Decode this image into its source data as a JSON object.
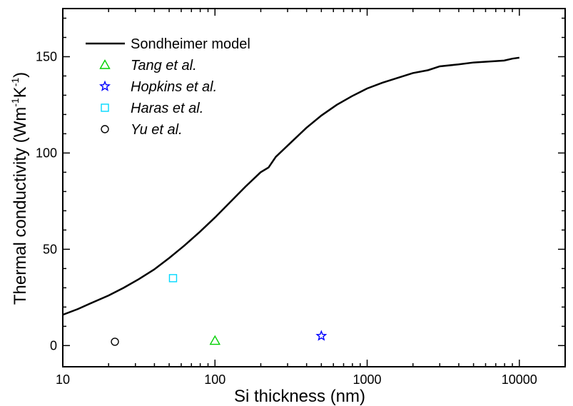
{
  "chart_data": {
    "type": "scatter",
    "xlabel": "Si thickness (nm)",
    "ylabel": "Thermal conductivity (Wm-1K-1)",
    "ylabel_parts": {
      "base": "Thermal conductivity (Wm",
      "exp1": "-1",
      "mid": "K",
      "exp2": "-1",
      "end": ")"
    },
    "x_scale": "log",
    "xlim": [
      10,
      20000
    ],
    "ylim": [
      -11,
      175
    ],
    "x_ticks": [
      10,
      100,
      1000,
      10000
    ],
    "x_tick_labels": [
      "10",
      "100",
      "1000",
      "10000"
    ],
    "y_ticks": [
      0,
      50,
      100,
      150
    ],
    "y_tick_labels": [
      "0",
      "50",
      "100",
      "150"
    ],
    "grid": false,
    "legend_position": "top-left",
    "series": [
      {
        "name": "Sondheimer model",
        "kind": "line",
        "color": "#000000",
        "x": [
          10,
          12.6,
          15.8,
          20,
          25.1,
          31.6,
          39.8,
          50.1,
          63.1,
          79.4,
          100,
          125.9,
          158.5,
          199.5,
          225,
          251,
          316,
          398,
          501,
          631,
          794,
          1000,
          1259,
          1585,
          1995,
          2512,
          3000,
          3981,
          5012,
          6310,
          7943,
          9000,
          10000
        ],
        "y": [
          16,
          19,
          22.5,
          26,
          30,
          34.5,
          39.5,
          45.5,
          52,
          59,
          66.5,
          74.5,
          82.5,
          90,
          92.5,
          98,
          105.5,
          113,
          119.5,
          125,
          129.5,
          133.5,
          136.5,
          139,
          141.5,
          143,
          145,
          146,
          147,
          147.5,
          148,
          149,
          149.5
        ]
      },
      {
        "name": "Tang et al.",
        "kind": "marker",
        "marker": "triangle",
        "color": "#00d000",
        "x": [
          100
        ],
        "y": [
          2.5
        ]
      },
      {
        "name": "Hopkins et al.",
        "kind": "marker",
        "marker": "star",
        "color": "#0000ff",
        "x": [
          500
        ],
        "y": [
          5
        ]
      },
      {
        "name": "Haras et al.",
        "kind": "marker",
        "marker": "square",
        "color": "#00d8ff",
        "x": [
          53
        ],
        "y": [
          35
        ]
      },
      {
        "name": "Yu et al.",
        "kind": "marker",
        "marker": "circle",
        "color": "#000000",
        "x": [
          22
        ],
        "y": [
          2
        ]
      }
    ]
  }
}
